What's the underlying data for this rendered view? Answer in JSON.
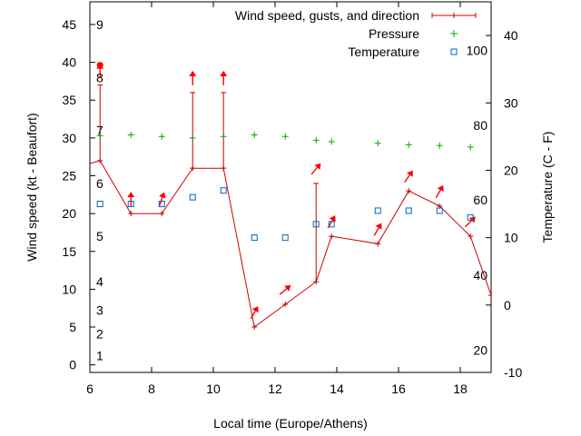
{
  "chart_data": {
    "type": "line",
    "xlabel": "Local time (Europe/Athens)",
    "ylabel": "Wind speed (kt - Beaufort)",
    "y2label": "Temperature (C - F)",
    "xlim": [
      6,
      19
    ],
    "ylim": [
      -1,
      48
    ],
    "y2lim": [
      -10,
      45
    ],
    "x_ticks": [
      6,
      8,
      10,
      12,
      14,
      16,
      18
    ],
    "y_ticks": [
      0,
      5,
      10,
      15,
      20,
      25,
      30,
      35,
      40,
      45
    ],
    "y2_ticks": [
      -10,
      0,
      10,
      20,
      30,
      40
    ],
    "grid": false,
    "legend_position": "top-right",
    "beaufort_labels": [
      {
        "text": "1",
        "y": 1.2
      },
      {
        "text": "2",
        "y": 4.1
      },
      {
        "text": "3",
        "y": 7.2
      },
      {
        "text": "4",
        "y": 11.0
      },
      {
        "text": "5",
        "y": 17.0
      },
      {
        "text": "6",
        "y": 24.0
      },
      {
        "text": "7",
        "y": 31.0
      },
      {
        "text": "8",
        "y": 38.0
      },
      {
        "text": "9",
        "y": 45.0
      }
    ],
    "fahrenheit_labels": [
      {
        "text": "20",
        "y2": -6.7
      },
      {
        "text": "40",
        "y2": 4.4
      },
      {
        "text": "60",
        "y2": 15.6
      },
      {
        "text": "80",
        "y2": 26.7
      },
      {
        "text": "100",
        "y2": 37.8
      }
    ],
    "series": [
      {
        "name": "Wind speed, gusts, and direction",
        "color": "#cc0000",
        "points": [
          {
            "x": 5.9,
            "y": 26.5
          },
          {
            "x": 6.33,
            "y": 27,
            "gust": 37,
            "dir": 0
          },
          {
            "x": 7.33,
            "y": 20,
            "dir": 0
          },
          {
            "x": 8.33,
            "y": 20,
            "dir": 20
          },
          {
            "x": 9.33,
            "y": 26,
            "gust": 36,
            "dir": 0
          },
          {
            "x": 10.33,
            "y": 26,
            "gust": 36,
            "dir": 0
          },
          {
            "x": 11.33,
            "y": 5,
            "dir": 30
          },
          {
            "x": 12.33,
            "y": 8,
            "dir": 50
          },
          {
            "x": 13.33,
            "y": 11,
            "gust": 24,
            "dir": 40
          },
          {
            "x": 13.83,
            "y": 17,
            "dir": 30
          },
          {
            "x": 15.33,
            "y": 16,
            "dir": 30
          },
          {
            "x": 16.33,
            "y": 23,
            "dir": 35
          },
          {
            "x": 17.33,
            "y": 21,
            "dir": 30
          },
          {
            "x": 18.33,
            "y": 17,
            "dir": 45
          },
          {
            "x": 19.0,
            "y": 9.2
          }
        ]
      },
      {
        "name": "Pressure",
        "color": "#00aa00",
        "points": [
          {
            "x": 6.33,
            "y": 30.3
          },
          {
            "x": 7.33,
            "y": 30.4
          },
          {
            "x": 8.33,
            "y": 30.2
          },
          {
            "x": 9.33,
            "y": 30.0
          },
          {
            "x": 10.33,
            "y": 30.2
          },
          {
            "x": 11.33,
            "y": 30.4
          },
          {
            "x": 12.33,
            "y": 30.2
          },
          {
            "x": 13.33,
            "y": 29.7
          },
          {
            "x": 13.83,
            "y": 29.5
          },
          {
            "x": 15.33,
            "y": 29.3
          },
          {
            "x": 16.33,
            "y": 29.1
          },
          {
            "x": 17.33,
            "y": 29.0
          },
          {
            "x": 18.33,
            "y": 28.8
          }
        ]
      },
      {
        "name": "Temperature",
        "color": "#0066bb",
        "points": [
          {
            "x": 6.33,
            "y2": 15
          },
          {
            "x": 7.33,
            "y2": 15
          },
          {
            "x": 8.33,
            "y2": 15
          },
          {
            "x": 9.33,
            "y2": 16
          },
          {
            "x": 10.33,
            "y2": 17
          },
          {
            "x": 11.33,
            "y2": 10
          },
          {
            "x": 12.33,
            "y2": 10
          },
          {
            "x": 13.33,
            "y2": 12
          },
          {
            "x": 13.83,
            "y2": 12
          },
          {
            "x": 15.33,
            "y2": 14
          },
          {
            "x": 16.33,
            "y2": 14
          },
          {
            "x": 17.33,
            "y2": 14
          },
          {
            "x": 18.33,
            "y2": 13
          }
        ]
      }
    ]
  }
}
